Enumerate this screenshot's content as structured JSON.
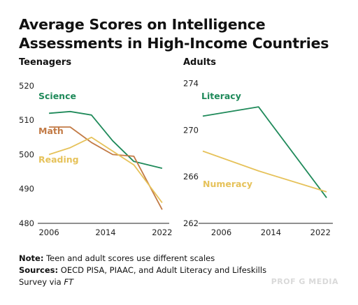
{
  "title": "Average Scores on Intelligence Assessments in High-Income Countries",
  "notes": {
    "note_label": "Note:",
    "note_text": "Teen and adult scores use different scales",
    "sources_label": "Sources:",
    "sources_text": "OECD PISA, PIAAC, and Adult Literacy and Lifeskills Survey via",
    "sources_italic": "FT"
  },
  "watermark": "PROF G MEDIA",
  "colors": {
    "science": "#1f8a5a",
    "math": "#c27a45",
    "reading": "#e6c25a",
    "literacy": "#1f8a5a",
    "numeracy": "#e6c25a",
    "axis": "#222222"
  },
  "chart_data": [
    {
      "type": "line",
      "title": "Teenagers",
      "x_ticks": [
        "2006",
        "2014",
        "2022"
      ],
      "y_ticks": [
        480,
        490,
        500,
        510,
        520
      ],
      "xlim": [
        2005,
        2023
      ],
      "ylim": [
        480,
        522
      ],
      "series": [
        {
          "name": "Science",
          "color": "#1f8a5a",
          "x": [
            2006,
            2009,
            2012,
            2015,
            2018,
            2022
          ],
          "y": [
            512,
            512.5,
            511.5,
            504,
            498,
            496
          ]
        },
        {
          "name": "Math",
          "color": "#c27a45",
          "x": [
            2006,
            2009,
            2012,
            2015,
            2018,
            2022
          ],
          "y": [
            508,
            508,
            503.5,
            500,
            499.5,
            484
          ]
        },
        {
          "name": "Reading",
          "color": "#e6c25a",
          "x": [
            2006,
            2009,
            2012,
            2015,
            2018,
            2022
          ],
          "y": [
            500,
            502,
            505,
            501,
            497,
            486
          ]
        }
      ]
    },
    {
      "type": "line",
      "title": "Adults",
      "x_ticks": [
        "2006",
        "2014",
        "2022"
      ],
      "y_ticks": [
        262,
        266,
        270,
        274
      ],
      "xlim": [
        2003,
        2024
      ],
      "ylim": [
        262,
        274.4
      ],
      "series": [
        {
          "name": "Literacy",
          "color": "#1f8a5a",
          "x": [
            2003,
            2012,
            2023
          ],
          "y": [
            271.2,
            272,
            264.2
          ]
        },
        {
          "name": "Numeracy",
          "color": "#e6c25a",
          "x": [
            2003,
            2012,
            2023
          ],
          "y": [
            268.2,
            266.5,
            264.7
          ]
        }
      ]
    }
  ]
}
